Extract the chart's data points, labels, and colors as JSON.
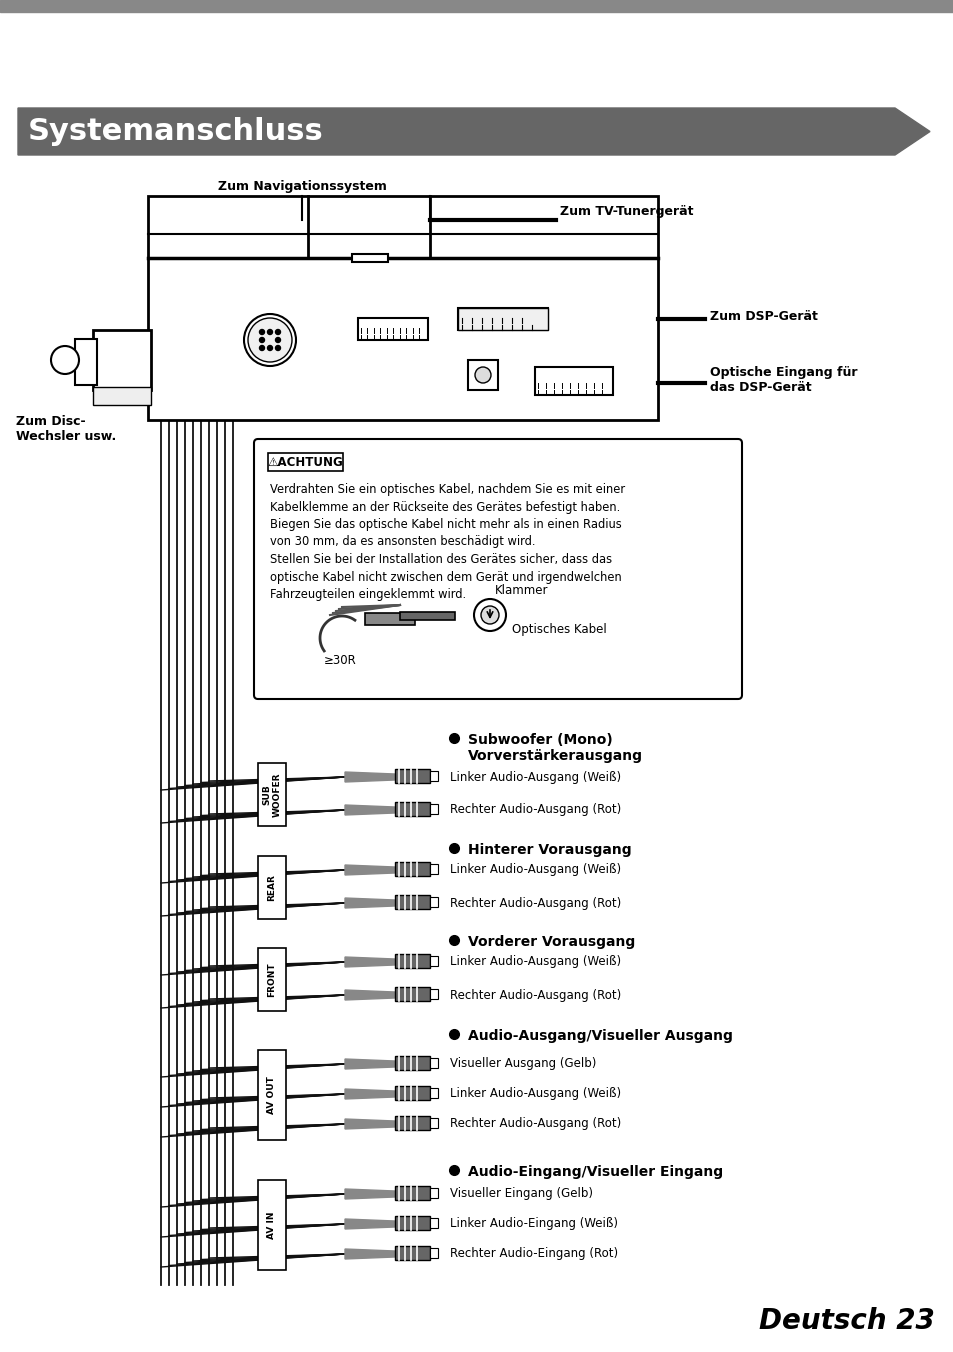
{
  "page_bg": "#ffffff",
  "top_bar_color": "#888888",
  "title_bg": "#666666",
  "title_text": "Systemanschluss",
  "title_color": "#ffffff",
  "title_fontsize": 22,
  "footer_text": "Deutsch 23",
  "footer_fontsize": 20,
  "labels": {
    "nav": "Zum Navigationssystem",
    "tv": "Zum TV-Tunergerät",
    "dsp": "Zum DSP-Gerät",
    "optical": "Optische Eingang für\ndas DSP-Gerät",
    "disc": "Zum Disc-\nWechsler usw.",
    "klammer": "Klammer",
    "optisches": "Optisches Kabel",
    "radius": "≥30R",
    "achtung": "⚠ACHTUNG",
    "achtung_text": "Verdrahten Sie ein optisches Kabel, nachdem Sie es mit einer\nKabelklemme an der Rückseite des Gerätes befestigt haben.\nBiegen Sie das optische Kabel nicht mehr als in einen Radius\nvon 30 mm, da es ansonsten beschädigt wird.\nStellen Sie bei der Installation des Gerätes sicher, dass das\noptische Kabel nicht zwischen dem Gerät und irgendwelchen\nFahrzeugteilen eingeklemmt wird.",
    "sub_title": "Subwoofer (Mono)\nVorverstärkerausgang",
    "sub_l": "Linker Audio-Ausgang (Weiß)",
    "sub_r": "Rechter Audio-Ausgang (Rot)",
    "rear_title": "Hinterer Vorausgang",
    "rear_l": "Linker Audio-Ausgang (Weiß)",
    "rear_r": "Rechter Audio-Ausgang (Rot)",
    "front_title": "Vorderer Vorausgang",
    "front_l": "Linker Audio-Ausgang (Weiß)",
    "front_r": "Rechter Audio-Ausgang (Rot)",
    "avout_title": "Audio-Ausgang/Visueller Ausgang",
    "avout_v": "Visueller Ausgang (Gelb)",
    "avout_l": "Linker Audio-Ausgang (Weiß)",
    "avout_r": "Rechter Audio-Ausgang (Rot)",
    "avin_title": "Audio-Eingang/Visueller Eingang",
    "avin_v": "Visueller Eingang (Gelb)",
    "avin_l": "Linker Audio-Eingang (Weiß)",
    "avin_r": "Rechter Audio-Eingang (Rot)",
    "sub_label": "SUB\nWOOFER",
    "rear_label": "REAR",
    "front_label": "FRONT",
    "avout_label": "AV OUT",
    "avin_label": "AV IN"
  }
}
